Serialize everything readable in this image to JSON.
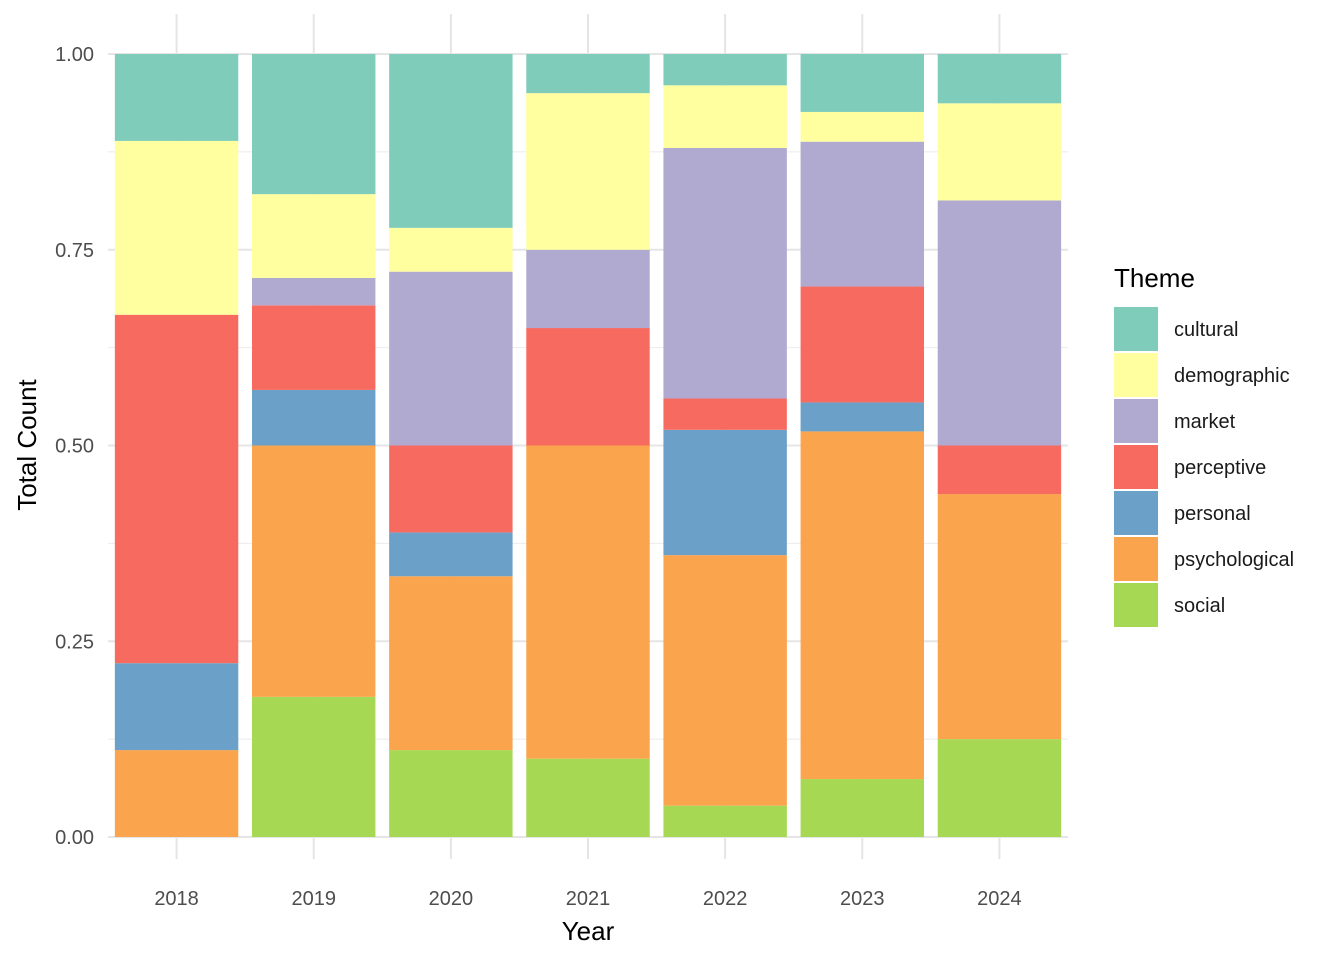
{
  "chart_data": {
    "type": "bar",
    "stacked": true,
    "normalized": true,
    "xlabel": "Year",
    "ylabel": "Total Count",
    "ylim": [
      0,
      1
    ],
    "y_ticks": [
      "0.00",
      "0.25",
      "0.50",
      "0.75",
      "1.00"
    ],
    "grid": true,
    "legend_position": "right",
    "legend_title": "Theme",
    "categories": [
      "2018",
      "2019",
      "2020",
      "2021",
      "2022",
      "2023",
      "2024"
    ],
    "series": [
      {
        "name": "social",
        "color": "#A6D854",
        "values": [
          0.0,
          0.179,
          0.111,
          0.1,
          0.04,
          0.074,
          0.125
        ]
      },
      {
        "name": "psychological",
        "color": "#FBA44E",
        "values": [
          0.111,
          0.321,
          0.222,
          0.4,
          0.32,
          0.444,
          0.313
        ]
      },
      {
        "name": "personal",
        "color": "#6BA1C8",
        "values": [
          0.111,
          0.071,
          0.056,
          0.0,
          0.16,
          0.037,
          0.0
        ]
      },
      {
        "name": "perceptive",
        "color": "#F76A60",
        "values": [
          0.445,
          0.108,
          0.111,
          0.15,
          0.04,
          0.148,
          0.062
        ]
      },
      {
        "name": "market",
        "color": "#B0AAD0",
        "values": [
          0.0,
          0.035,
          0.222,
          0.1,
          0.32,
          0.185,
          0.313
        ]
      },
      {
        "name": "demographic",
        "color": "#FFFF9F",
        "values": [
          0.222,
          0.107,
          0.056,
          0.2,
          0.08,
          0.038,
          0.124
        ]
      },
      {
        "name": "cultural",
        "color": "#7FCCBB",
        "values": [
          0.111,
          0.179,
          0.222,
          0.05,
          0.04,
          0.074,
          0.063
        ]
      }
    ],
    "legend_order": [
      "cultural",
      "demographic",
      "market",
      "perceptive",
      "personal",
      "psychological",
      "social"
    ]
  }
}
